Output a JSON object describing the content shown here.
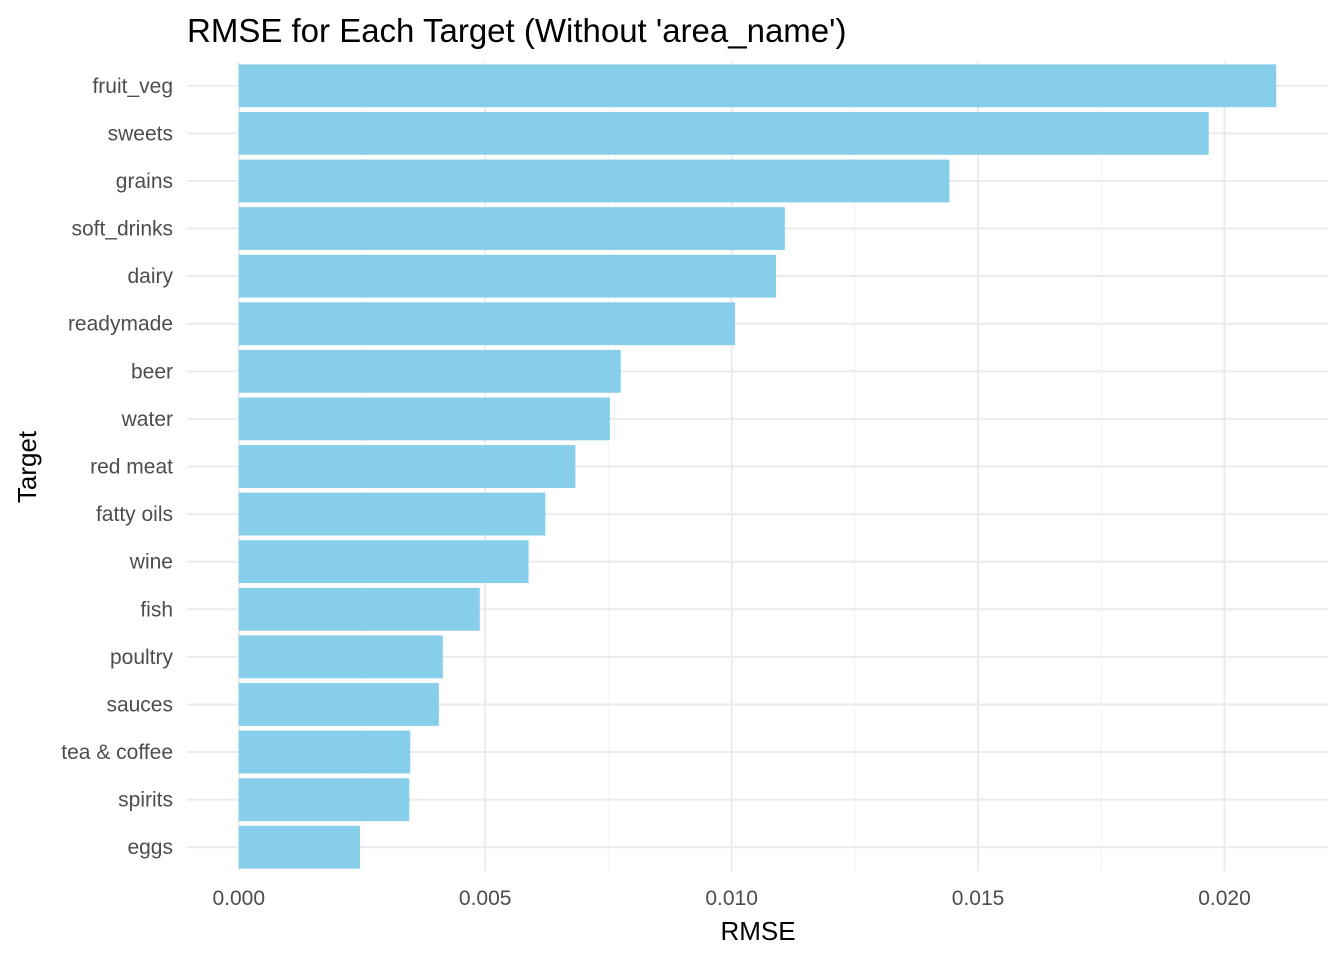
{
  "chart_data": {
    "type": "bar",
    "orientation": "horizontal",
    "title": "RMSE for Each Target (Without 'area_name')",
    "xlabel": "RMSE",
    "ylabel": "Target",
    "xlim": [
      -0.00105,
      0.0221
    ],
    "x_ticks": [
      0.0,
      0.005,
      0.01,
      0.015,
      0.02
    ],
    "x_tick_labels": [
      "0.000",
      "0.005",
      "0.010",
      "0.015",
      "0.020"
    ],
    "grid": true,
    "legend": "none",
    "bar_color": "#87ceeb",
    "categories": [
      "fruit_veg",
      "sweets",
      "grains",
      "soft_drinks",
      "dairy",
      "readymade",
      "beer",
      "water",
      "red meat",
      "fatty oils",
      "wine",
      "fish",
      "poultry",
      "sauces",
      "tea & coffee",
      "spirits",
      "eggs"
    ],
    "values": [
      0.02105,
      0.01968,
      0.01442,
      0.01108,
      0.0109,
      0.01007,
      0.00775,
      0.00753,
      0.00683,
      0.00622,
      0.00588,
      0.00489,
      0.00414,
      0.00406,
      0.00348,
      0.00346,
      0.00246
    ]
  }
}
